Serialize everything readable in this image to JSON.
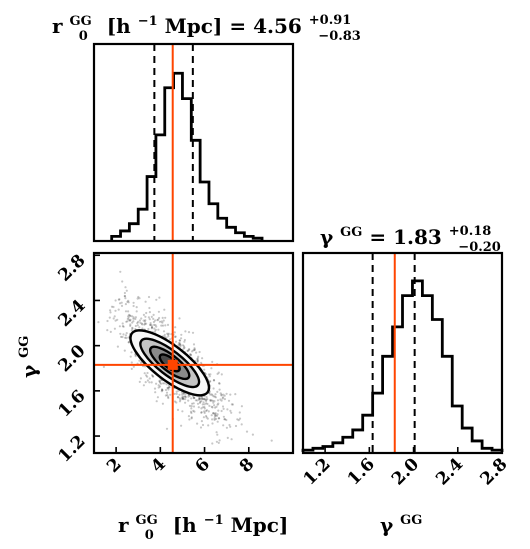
{
  "chart_data": [
    {
      "type": "histogram",
      "panel": "r0-marginal",
      "title": {
        "main": "r",
        "sub_top": "GG",
        "sub_bottom": "0",
        "rest": "[h",
        "rest_sup": "−1",
        "rest_end": " Mpc] = 4.56",
        "err_plus": "+0.91",
        "err_minus": "−0.83"
      },
      "xlim": [
        1,
        10
      ],
      "median": 4.56,
      "quantiles": [
        3.73,
        5.47
      ],
      "bin_width": 0.4,
      "bins_start": 1.8,
      "counts": [
        0.02,
        0.05,
        0.09,
        0.17,
        0.35,
        0.58,
        0.84,
        0.92,
        0.78,
        0.55,
        0.32,
        0.2,
        0.12,
        0.07,
        0.04,
        0.02,
        0.01
      ]
    },
    {
      "type": "histogram",
      "panel": "gamma-marginal",
      "title": {
        "main": "γ",
        "sub_top": "GG",
        "rest_end": " = 1.83",
        "err_plus": "+0.18",
        "err_minus": "−0.20"
      },
      "xlim": [
        1.0,
        2.8
      ],
      "median": 1.83,
      "quantiles": [
        1.63,
        2.01
      ],
      "bin_width": 0.09,
      "bins_start": 1.0,
      "counts": [
        0.01,
        0.02,
        0.03,
        0.05,
        0.08,
        0.12,
        0.2,
        0.32,
        0.52,
        0.68,
        0.85,
        0.93,
        0.85,
        0.72,
        0.52,
        0.25,
        0.13,
        0.06,
        0.02,
        0.01
      ],
      "xticks": [
        "1.2",
        "1.6",
        "2.0",
        "2.4",
        "2.8"
      ],
      "xlabel": "γ",
      "xlabel_sup": "GG"
    },
    {
      "type": "scatter-contour",
      "panel": "joint",
      "xlim": [
        1,
        10
      ],
      "ylim": [
        1.05,
        2.82
      ],
      "truth": {
        "x": 4.56,
        "y": 1.83
      },
      "xticks": [
        "2",
        "4",
        "6",
        "8"
      ],
      "yticks": [
        "1.2",
        "1.6",
        "2.0",
        "2.4",
        "2.8"
      ],
      "xlabel": {
        "main": "r",
        "sub_top": "GG",
        "sub_bottom": "0",
        "rest": "[h",
        "rest_sup": "−1",
        "rest_end": " Mpc]"
      },
      "ylabel": "γ",
      "ylabel_sup": "GG"
    }
  ],
  "colors": {
    "truth_line": "#ff4500",
    "ink": "#000000",
    "contour_fill": [
      "#f7f7f7",
      "#c4c4c4",
      "#8a8a8a",
      "#4a4a4a"
    ],
    "scatter": "#000000"
  }
}
